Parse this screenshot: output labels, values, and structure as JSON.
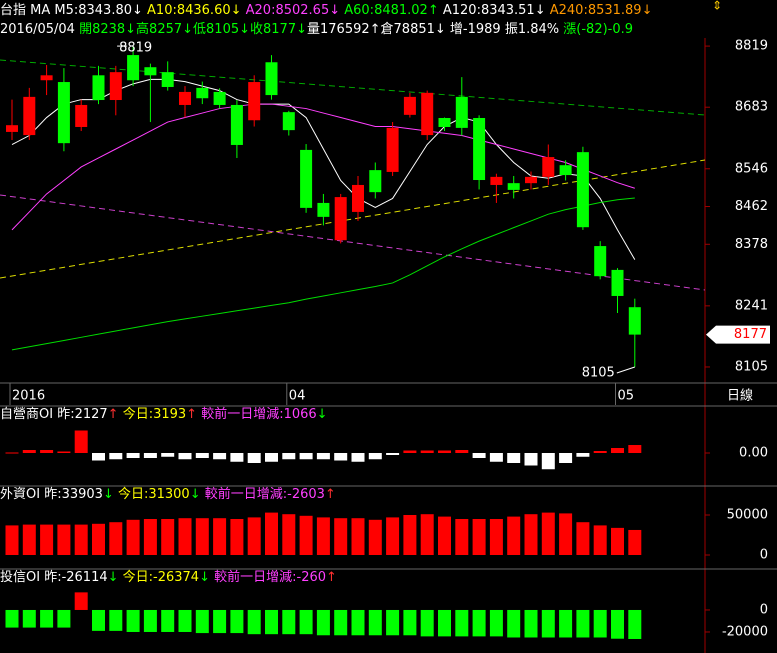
{
  "chart_data": [
    {
      "type": "candlestick",
      "header": [
        {
          "text": "台指 MA ",
          "color": "#ffffff"
        },
        {
          "text": "M5:8343.80↓ ",
          "color": "#ffffff"
        },
        {
          "text": "A10:8436.60↓ ",
          "color": "#ffff00"
        },
        {
          "text": "A20:8502.65↓ ",
          "color": "#ff40ff"
        },
        {
          "text": "A60:8481.02↑ ",
          "color": "#00ff00"
        },
        {
          "text": "A120:8343.51↓ ",
          "color": "#ffffff"
        },
        {
          "text": "A240:8531.89↓",
          "color": "#ff9900"
        }
      ],
      "subheader": [
        {
          "text": "2016/05/04 ",
          "color": "#ffffff"
        },
        {
          "text": "開8238↓",
          "color": "#00ff00"
        },
        {
          "text": "高8257↓",
          "color": "#00ff00"
        },
        {
          "text": "低8105↓",
          "color": "#00ff00"
        },
        {
          "text": "收8177↓",
          "color": "#00ff00"
        },
        {
          "text": "量176592↑",
          "color": "#ffffff"
        },
        {
          "text": "倉78851↓ ",
          "color": "#ffffff"
        },
        {
          "text": "增-1989 ",
          "color": "#ffffff"
        },
        {
          "text": "振1.84% ",
          "color": "#ffffff"
        },
        {
          "text": "漲(-82)-0.9",
          "color": "#00ff00"
        }
      ],
      "categories": [
        "2016",
        null,
        null,
        null,
        null,
        null,
        null,
        null,
        null,
        null,
        null,
        null,
        null,
        null,
        null,
        null,
        "04",
        null,
        null,
        null,
        null,
        null,
        null,
        null,
        null,
        null,
        null,
        null,
        null,
        null,
        null,
        null,
        null,
        null,
        null,
        "05",
        null
      ],
      "open": [
        8628,
        8621,
        8743,
        8739,
        8639,
        8754,
        8699,
        8799,
        8772,
        8761,
        8688,
        8726,
        8717,
        8688,
        8654,
        8783,
        8672,
        8588,
        8470,
        8387,
        8450,
        8543,
        8539,
        8666,
        8621,
        8659,
        8706,
        8659,
        8510,
        8514,
        8514,
        8528,
        8554,
        8583,
        8374,
        8321,
        8238
      ],
      "high": [
        8700,
        8726,
        8777,
        8770,
        8700,
        8775,
        8775,
        8819,
        8780,
        8785,
        8730,
        8740,
        8725,
        8699,
        8754,
        8799,
        8675,
        8601,
        8490,
        8490,
        8530,
        8560,
        8650,
        8715,
        8720,
        8660,
        8750,
        8665,
        8535,
        8530,
        8540,
        8600,
        8565,
        8595,
        8385,
        8325,
        8257
      ],
      "low": [
        8610,
        8610,
        8710,
        8585,
        8630,
        8690,
        8665,
        8730,
        8650,
        8720,
        8660,
        8690,
        8680,
        8570,
        8640,
        8700,
        8620,
        8448,
        8420,
        8380,
        8430,
        8480,
        8530,
        8660,
        8610,
        8630,
        8620,
        8500,
        8470,
        8480,
        8500,
        8510,
        8520,
        8410,
        8300,
        8225,
        8105
      ],
      "close": [
        8643,
        8706,
        8754,
        8603,
        8688,
        8699,
        8761,
        8743,
        8754,
        8728,
        8717,
        8703,
        8688,
        8599,
        8739,
        8710,
        8632,
        8459,
        8439,
        8483,
        8510,
        8494,
        8637,
        8706,
        8715,
        8639,
        8637,
        8521,
        8528,
        8499,
        8528,
        8572,
        8532,
        8416,
        8307,
        8263,
        8177
      ],
      "up_color": "#ff0000",
      "down_color": "#00ff00",
      "ma_lines": [
        {
          "color": "#ffffff",
          "values": [
            8600,
            8620,
            8660,
            8690,
            8700,
            8700,
            8720,
            8735,
            8745,
            8745,
            8740,
            8730,
            8720,
            8700,
            8690,
            8690,
            8690,
            8660,
            8590,
            8520,
            8480,
            8460,
            8480,
            8540,
            8600,
            8640,
            8660,
            8650,
            8600,
            8560,
            8530,
            8525,
            8535,
            8530,
            8480,
            8410,
            8343.8
          ]
        },
        {
          "color": "#ff40ff",
          "values": [
            8410,
            8450,
            8490,
            8520,
            8550,
            8570,
            8590,
            8610,
            8630,
            8650,
            8660,
            8670,
            8680,
            8685,
            8690,
            8690,
            8685,
            8680,
            8670,
            8660,
            8650,
            8640,
            8640,
            8635,
            8630,
            8625,
            8620,
            8610,
            8600,
            8590,
            8580,
            8570,
            8560,
            8545,
            8530,
            8515,
            8502.65
          ]
        },
        {
          "color": "#00dd00",
          "values": [
            8143,
            8150,
            8157,
            8164,
            8171,
            8178,
            8185,
            8192,
            8199,
            8206,
            8212,
            8218,
            8224,
            8230,
            8236,
            8242,
            8248,
            8256,
            8263,
            8270,
            8277,
            8284,
            8292,
            8310,
            8330,
            8350,
            8368,
            8385,
            8400,
            8415,
            8430,
            8445,
            8455,
            8463,
            8471,
            8477,
            8481.02
          ]
        }
      ],
      "ylim": [
        8076,
        8837
      ],
      "yticks": [
        8819,
        8683,
        8546,
        8462,
        8378,
        8241,
        8105
      ],
      "annotations": [
        "8819",
        "8105"
      ],
      "last_price_label": "8177",
      "period_label": "日線"
    },
    {
      "type": "bar",
      "header": [
        {
          "text": "自營商OI 昨:2127",
          "color": "#ffffff"
        },
        {
          "text": "↑ ",
          "color": "#ff3030"
        },
        {
          "text": "今日:3193",
          "color": "#ffff00"
        },
        {
          "text": "↑ ",
          "color": "#ff3030"
        },
        {
          "text": "較前一日增減:1066",
          "color": "#ff40ff"
        },
        {
          "text": "↓",
          "color": "#00ff00"
        }
      ],
      "values": [
        200,
        1200,
        1200,
        600,
        9000,
        -3000,
        -2500,
        -2000,
        -2000,
        -1500,
        -2500,
        -2000,
        -2500,
        -3500,
        -4000,
        -3500,
        -2500,
        -2500,
        -2500,
        -3000,
        -3500,
        -2500,
        -800,
        1000,
        1000,
        1000,
        1200,
        -2000,
        -3500,
        -4000,
        -5000,
        -6500,
        -4000,
        -1500,
        800,
        2000,
        3193
      ],
      "up_color": "#ff0000",
      "down_color": "#ffffff",
      "ylim": [
        -11600,
        17200
      ],
      "yticks": [
        {
          "value": 0,
          "label": "0.00"
        }
      ]
    },
    {
      "type": "bar",
      "header": [
        {
          "text": "外資OI 昨:33903",
          "color": "#ffffff"
        },
        {
          "text": "↓ ",
          "color": "#00ff00"
        },
        {
          "text": "今日:31300",
          "color": "#ffff00"
        },
        {
          "text": "↓ ",
          "color": "#00ff00"
        },
        {
          "text": "較前一日增減:-2603",
          "color": "#ff40ff"
        },
        {
          "text": "↑",
          "color": "#ff3030"
        }
      ],
      "values": [
        37000,
        38000,
        38000,
        38000,
        38000,
        39000,
        41000,
        44000,
        45000,
        45000,
        46000,
        46000,
        46000,
        45000,
        47000,
        53000,
        51000,
        49000,
        47000,
        46000,
        46000,
        44000,
        47000,
        50000,
        51000,
        48000,
        45000,
        45000,
        45000,
        48000,
        51000,
        53000,
        52000,
        41000,
        37000,
        33903,
        31300
      ],
      "up_color": "#ff0000",
      "down_color": "#00ff00",
      "ylim": [
        -15000,
        81250
      ],
      "yticks": [
        50000,
        0
      ]
    },
    {
      "type": "bar",
      "header": [
        {
          "text": "投信OI 昨:-26114",
          "color": "#ffffff"
        },
        {
          "text": "↓ ",
          "color": "#00ff00"
        },
        {
          "text": "今日:-26374",
          "color": "#ffff00"
        },
        {
          "text": "↓ ",
          "color": "#00ff00"
        },
        {
          "text": "較前一日增減:-260",
          "color": "#ff40ff"
        },
        {
          "text": "↑",
          "color": "#ff3030"
        }
      ],
      "values": [
        -16000,
        -16000,
        -16000,
        -16000,
        16000,
        -19000,
        -19000,
        -20000,
        -20000,
        -20000,
        -20000,
        -21000,
        -21000,
        -21000,
        -22000,
        -22000,
        -22000,
        -22000,
        -23000,
        -23000,
        -23000,
        -23000,
        -23000,
        -23000,
        -24000,
        -24000,
        -24000,
        -24000,
        -24000,
        -25000,
        -25000,
        -25000,
        -25000,
        -25000,
        -25000,
        -26114,
        -26374
      ],
      "up_color": "#ff0000",
      "down_color": "#00ff00",
      "ylim": [
        -39100,
        33600
      ],
      "yticks": [
        0,
        -20000
      ]
    }
  ]
}
